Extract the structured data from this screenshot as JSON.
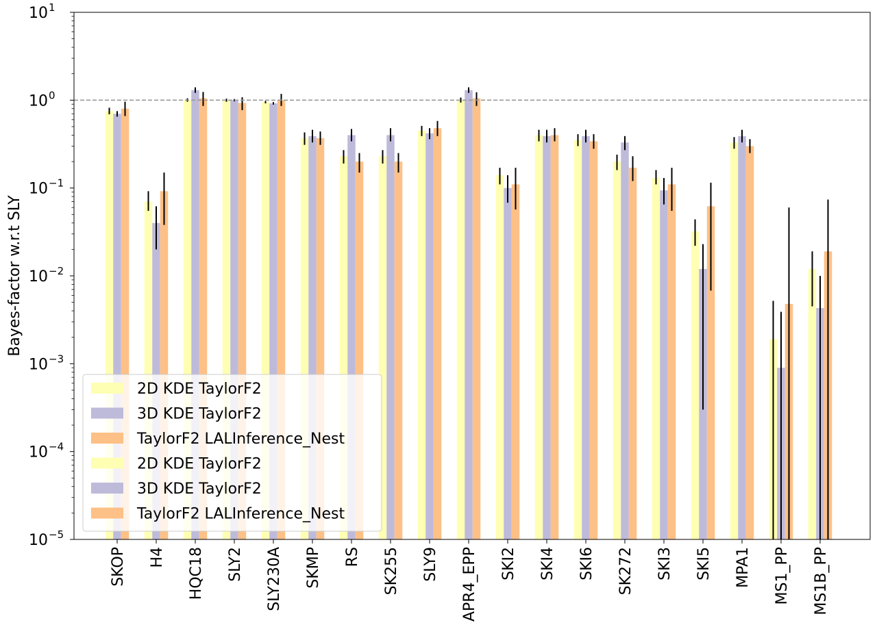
{
  "chart_data": {
    "type": "bar",
    "title": "",
    "xlabel": "",
    "ylabel": "Bayes-factor w.r.t SLY",
    "yscale": "log",
    "ylim": [
      1e-05,
      10
    ],
    "y_ticks": [
      {
        "value": 1e-05,
        "base": "10",
        "exp": "−5"
      },
      {
        "value": 0.0001,
        "base": "10",
        "exp": "−4"
      },
      {
        "value": 0.001,
        "base": "10",
        "exp": "−3"
      },
      {
        "value": 0.01,
        "base": "10",
        "exp": "−2"
      },
      {
        "value": 0.1,
        "base": "10",
        "exp": "−1"
      },
      {
        "value": 1,
        "base": "10",
        "exp": "0"
      },
      {
        "value": 10,
        "base": "10",
        "exp": "1"
      }
    ],
    "reference_line": {
      "value": 1,
      "style": "dashed",
      "color": "#999999"
    },
    "grid": false,
    "legend_position": "lower-left",
    "categories": [
      "SKOP",
      "H4",
      "HQC18",
      "SLY2",
      "SLY230A",
      "SKMP",
      "RS",
      "SK255",
      "SLY9",
      "APR4_EPP",
      "SKI2",
      "SKI4",
      "SKI6",
      "SK272",
      "SKI3",
      "SKI5",
      "MPA1",
      "MS1_PP",
      "MS1B_PP"
    ],
    "series": [
      {
        "name": "2D KDE TaylorF2",
        "color": "#ffffb3",
        "values": [
          0.75,
          0.07,
          1.0,
          1.0,
          0.95,
          0.37,
          0.23,
          0.23,
          0.45,
          1.0,
          0.14,
          0.4,
          0.35,
          0.2,
          0.13,
          0.032,
          0.33,
          0.0019,
          0.012
        ],
        "err_low": [
          0.69,
          0.055,
          0.96,
          0.96,
          0.92,
          0.31,
          0.19,
          0.19,
          0.39,
          0.94,
          0.11,
          0.34,
          0.3,
          0.16,
          0.11,
          0.022,
          0.28,
          1e-05,
          0.0045
        ],
        "err_high": [
          0.82,
          0.092,
          1.05,
          1.04,
          0.98,
          0.43,
          0.27,
          0.27,
          0.51,
          1.07,
          0.17,
          0.46,
          0.41,
          0.24,
          0.16,
          0.044,
          0.38,
          0.0052,
          0.019
        ]
      },
      {
        "name": "3D KDE TaylorF2",
        "color": "#bebada",
        "values": [
          0.7,
          0.04,
          1.3,
          1.0,
          0.92,
          0.39,
          0.4,
          0.4,
          0.42,
          1.3,
          0.1,
          0.39,
          0.39,
          0.33,
          0.094,
          0.012,
          0.39,
          0.0009,
          0.0043
        ],
        "err_low": [
          0.65,
          0.02,
          1.21,
          0.97,
          0.89,
          0.33,
          0.34,
          0.34,
          0.36,
          1.21,
          0.068,
          0.33,
          0.33,
          0.27,
          0.065,
          0.0003,
          0.33,
          1e-05,
          1e-05
        ],
        "err_high": [
          0.75,
          0.062,
          1.4,
          1.03,
          0.95,
          0.46,
          0.47,
          0.48,
          0.48,
          1.4,
          0.14,
          0.46,
          0.46,
          0.39,
          0.13,
          0.023,
          0.46,
          0.0039,
          0.01
        ]
      },
      {
        "name": "TaylorF2 LALInference_Nest",
        "color": "#fdc086",
        "values": [
          0.8,
          0.092,
          1.05,
          0.93,
          1.0,
          0.37,
          0.2,
          0.2,
          0.48,
          1.05,
          0.11,
          0.4,
          0.34,
          0.17,
          0.11,
          0.062,
          0.3,
          0.0048,
          0.019
        ],
        "err_low": [
          0.66,
          0.038,
          0.86,
          0.77,
          0.86,
          0.31,
          0.15,
          0.15,
          0.39,
          0.86,
          0.057,
          0.34,
          0.28,
          0.12,
          0.055,
          0.0068,
          0.25,
          1e-05,
          1e-05
        ],
        "err_high": [
          0.96,
          0.15,
          1.24,
          1.08,
          1.18,
          0.44,
          0.25,
          0.25,
          0.58,
          1.23,
          0.17,
          0.48,
          0.41,
          0.23,
          0.17,
          0.115,
          0.36,
          0.06,
          0.074
        ]
      }
    ],
    "legend_entries": [
      {
        "label": "2D KDE TaylorF2",
        "color": "#ffffb3"
      },
      {
        "label": "3D KDE TaylorF2",
        "color": "#bebada"
      },
      {
        "label": "TaylorF2 LALInference_Nest",
        "color": "#fdc086"
      },
      {
        "label": "2D KDE TaylorF2",
        "color": "#ffffb3"
      },
      {
        "label": "3D KDE TaylorF2",
        "color": "#bebada"
      },
      {
        "label": "TaylorF2 LALInference_Nest",
        "color": "#fdc086"
      }
    ]
  }
}
